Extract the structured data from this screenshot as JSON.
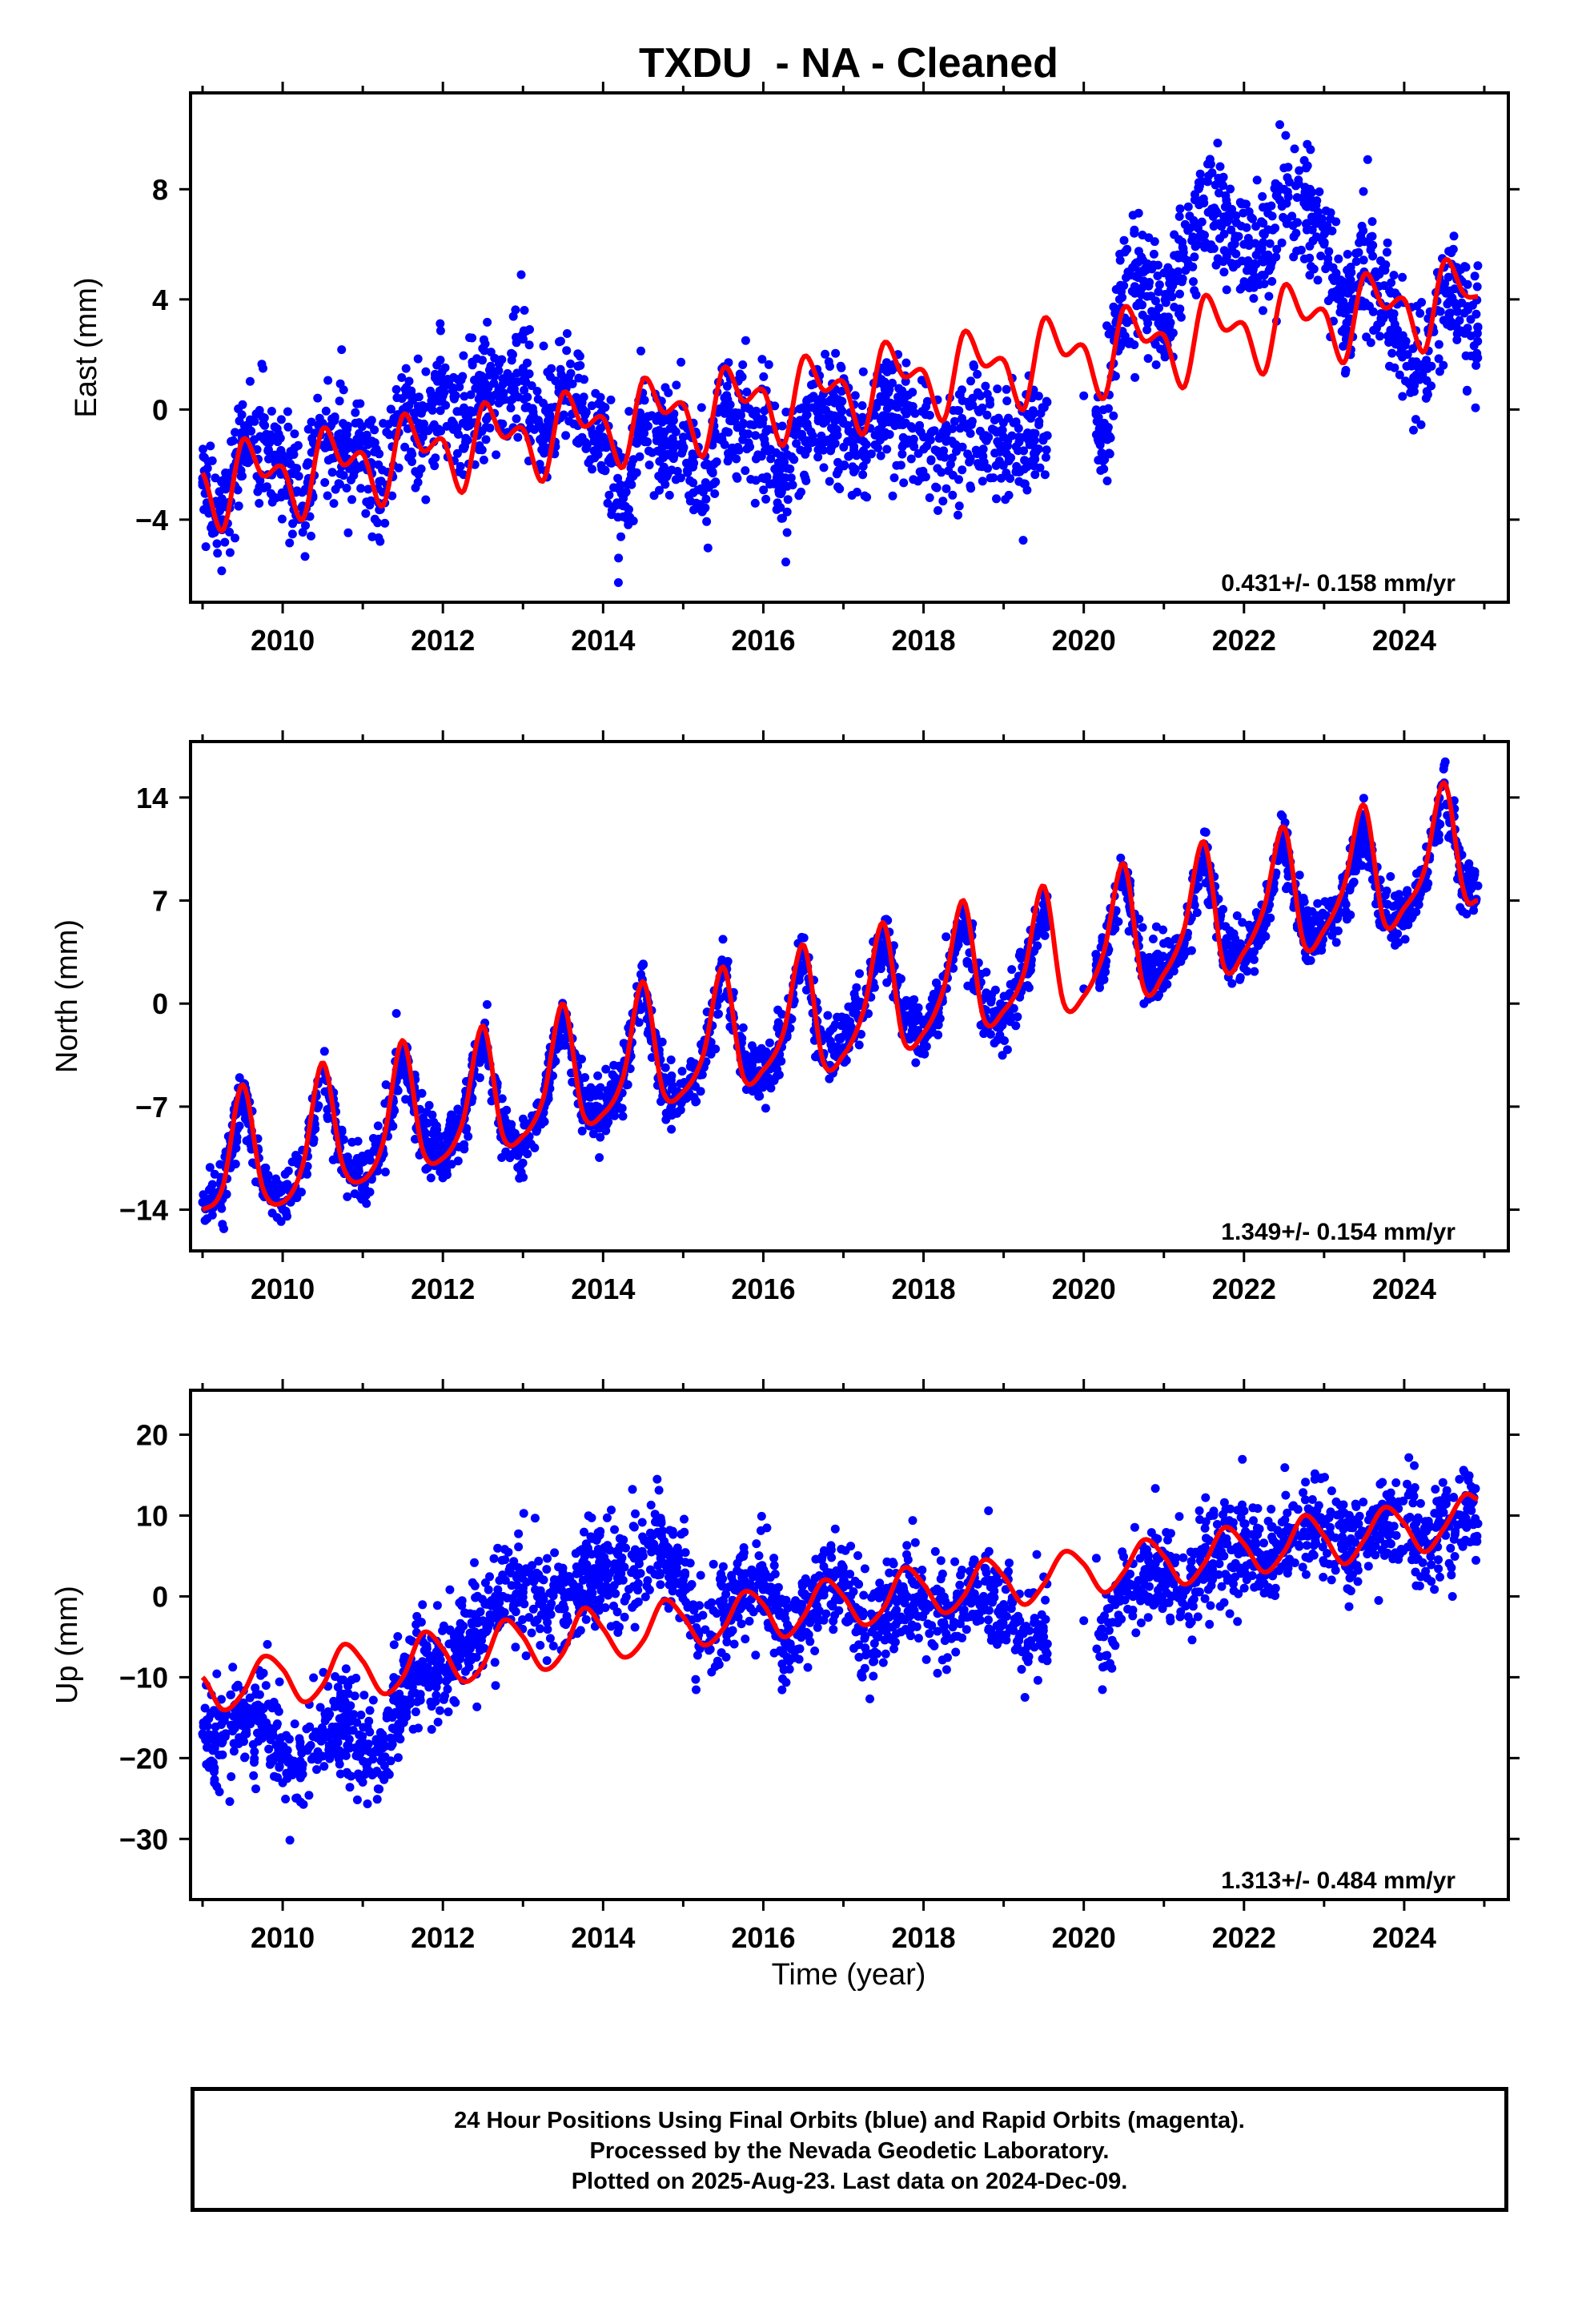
{
  "title": "TXDU  - NA - Cleaned",
  "xlabel": "Time (year)",
  "footer": {
    "line1": "24 Hour Positions Using Final Orbits (blue) and Rapid Orbits (magenta).",
    "line2": "Processed by the Nevada Geodetic Laboratory.",
    "line3": "Plotted on 2025-Aug-23. Last data on 2024-Dec-09."
  },
  "colors": {
    "data": "#0000ff",
    "model": "#ff0000",
    "axis": "#000000"
  },
  "chart_data": [
    {
      "type": "scatter",
      "panel": "east",
      "ylabel": "East (mm)",
      "rate_text": "0.431+/- 0.158 mm/yr",
      "xlim": [
        2008.85,
        2025.3
      ],
      "ylim": [
        -7,
        11.5
      ],
      "xticks": [
        2010,
        2012,
        2014,
        2016,
        2018,
        2020,
        2022,
        2024
      ],
      "yticks": [
        -4,
        0,
        4,
        8
      ],
      "ytick_labels": [
        "−4",
        "0",
        "4",
        "8"
      ],
      "series": [
        {
          "role": "data",
          "x": [
            2009.0,
            2009.25,
            2009.5,
            2009.75,
            2010.0,
            2010.25,
            2010.5,
            2010.75,
            2011.0,
            2011.25,
            2011.5,
            2011.75,
            2012.0,
            2012.25,
            2012.5,
            2012.75,
            2013.0,
            2013.25,
            2013.5,
            2013.75,
            2014.0,
            2014.25,
            2014.5,
            2014.75,
            2015.0,
            2015.25,
            2015.5,
            2015.75,
            2016.0,
            2016.25,
            2016.5,
            2016.75,
            2017.0,
            2017.25,
            2017.5,
            2017.75,
            2018.0,
            2018.25,
            2018.5,
            2018.75,
            2019.0,
            2019.25,
            2019.5,
            2020.0,
            2020.25,
            2020.5,
            2020.75,
            2021.0,
            2021.25,
            2021.5,
            2021.75,
            2022.0,
            2022.25,
            2022.5,
            2022.75,
            2023.0,
            2023.25,
            2023.5,
            2023.75,
            2024.0,
            2024.25,
            2024.5,
            2024.75,
            2024.92
          ],
          "y": [
            -2.5,
            -4.0,
            -1.5,
            -1.0,
            -2.0,
            -3.5,
            -0.5,
            -1.5,
            -1.5,
            -3.0,
            0.0,
            -1.0,
            0.5,
            -0.5,
            1.0,
            0.5,
            1.5,
            -1.0,
            1.0,
            0.0,
            -1.0,
            -3.5,
            -0.5,
            -1.0,
            -1.0,
            -3.0,
            0.0,
            -0.5,
            -1.0,
            -2.5,
            -0.5,
            -0.5,
            -0.5,
            -1.5,
            0.5,
            -0.5,
            -1.0,
            -1.5,
            -0.5,
            -1.0,
            -1.0,
            -1.5,
            -1.0,
            0.5,
            -1.0,
            4.5,
            5.0,
            3.0,
            5.5,
            7.5,
            7.0,
            6.0,
            5.5,
            8.0,
            7.5,
            6.0,
            3.5,
            5.0,
            4.5,
            2.0,
            1.5,
            4.5,
            3.5,
            3.0
          ]
        },
        {
          "role": "model",
          "x": [
            2009.0,
            2009.25,
            2009.5,
            2009.75,
            2010.0,
            2010.25,
            2010.5,
            2010.75,
            2011.0,
            2011.25,
            2011.5,
            2011.75,
            2012.0,
            2012.25,
            2012.5,
            2012.75,
            2013.0,
            2013.25,
            2013.5,
            2013.75,
            2014.0,
            2014.25,
            2014.5,
            2014.75,
            2015.0,
            2015.25,
            2015.5,
            2015.75,
            2016.0,
            2016.25,
            2016.5,
            2016.75,
            2017.0,
            2017.25,
            2017.5,
            2017.75,
            2018.0,
            2018.25,
            2018.5,
            2018.75,
            2019.0,
            2019.25,
            2019.5,
            2019.75,
            2020.0,
            2020.25,
            2020.5,
            2020.75,
            2021.0,
            2021.25,
            2021.5,
            2021.75,
            2022.0,
            2022.25,
            2022.5,
            2022.75,
            2023.0,
            2023.25,
            2023.5,
            2023.75,
            2024.0,
            2024.25,
            2024.5,
            2024.75,
            2024.92
          ],
          "y": [
            -2.3,
            -4.4,
            -1.1,
            -2.4,
            -2.1,
            -4.0,
            -0.7,
            -2.0,
            -1.6,
            -3.5,
            -0.2,
            -1.5,
            -1.1,
            -3.0,
            0.2,
            -1.0,
            -0.7,
            -2.6,
            0.6,
            -0.6,
            -0.3,
            -2.1,
            1.1,
            -0.1,
            0.2,
            -1.7,
            1.5,
            0.3,
            0.7,
            -1.3,
            1.9,
            0.7,
            1.0,
            -0.9,
            2.4,
            1.2,
            1.4,
            -0.4,
            2.8,
            1.6,
            1.8,
            0.0,
            3.3,
            2.0,
            2.3,
            0.4,
            3.7,
            2.5,
            2.7,
            0.8,
            4.1,
            2.9,
            3.1,
            1.3,
            4.5,
            3.3,
            3.6,
            1.7,
            4.9,
            3.7,
            4.0,
            2.1,
            5.4,
            4.2,
            4.1
          ]
        }
      ]
    },
    {
      "type": "scatter",
      "panel": "north",
      "ylabel": "North (mm)",
      "rate_text": "1.349+/- 0.154 mm/yr",
      "xlim": [
        2008.85,
        2025.3
      ],
      "ylim": [
        -16.8,
        17.8
      ],
      "xticks": [
        2010,
        2012,
        2014,
        2016,
        2018,
        2020,
        2022,
        2024
      ],
      "yticks": [
        -14,
        -7,
        0,
        7,
        14
      ],
      "ytick_labels": [
        "−14",
        "−7",
        "0",
        "7",
        "14"
      ],
      "series": [
        {
          "role": "data",
          "x": [
            2009.0,
            2009.25,
            2009.5,
            2009.75,
            2010.0,
            2010.25,
            2010.5,
            2010.75,
            2011.0,
            2011.25,
            2011.5,
            2011.75,
            2012.0,
            2012.25,
            2012.5,
            2012.75,
            2013.0,
            2013.25,
            2013.5,
            2013.75,
            2014.0,
            2014.25,
            2014.5,
            2014.75,
            2015.0,
            2015.25,
            2015.5,
            2015.75,
            2016.0,
            2016.25,
            2016.5,
            2016.75,
            2017.0,
            2017.25,
            2017.5,
            2017.75,
            2018.0,
            2018.25,
            2018.5,
            2018.75,
            2019.0,
            2019.25,
            2019.5,
            2020.0,
            2020.25,
            2020.5,
            2020.75,
            2021.0,
            2021.25,
            2021.5,
            2021.75,
            2022.0,
            2022.25,
            2022.5,
            2022.75,
            2023.0,
            2023.25,
            2023.5,
            2023.75,
            2024.0,
            2024.25,
            2024.5,
            2024.75,
            2024.92
          ],
          "y": [
            -13.5,
            -12.5,
            -6.0,
            -12.0,
            -13.5,
            -11.5,
            -4.5,
            -10.5,
            -12.0,
            -10.0,
            -3.0,
            -9.0,
            -10.0,
            -8.0,
            -2.0,
            -8.5,
            -10.0,
            -7.0,
            -0.5,
            -7.0,
            -7.5,
            -5.0,
            1.0,
            -5.5,
            -6.5,
            -4.0,
            2.5,
            -4.0,
            -5.0,
            -2.5,
            3.5,
            -3.5,
            -3.0,
            0.0,
            5.0,
            -1.0,
            -2.5,
            1.0,
            6.0,
            -0.5,
            -1.0,
            2.0,
            6.0,
            1.0,
            3.0,
            9.0,
            2.0,
            2.5,
            4.0,
            10.5,
            3.5,
            3.5,
            5.5,
            11.5,
            4.5,
            5.0,
            7.0,
            12.5,
            6.0,
            6.0,
            8.0,
            15.0,
            7.5,
            8.0
          ]
        },
        {
          "role": "model",
          "x": [
            2009.0,
            2009.25,
            2009.5,
            2009.75,
            2010.0,
            2010.25,
            2010.5,
            2010.75,
            2011.0,
            2011.25,
            2011.5,
            2011.75,
            2012.0,
            2012.25,
            2012.5,
            2012.75,
            2013.0,
            2013.25,
            2013.5,
            2013.75,
            2014.0,
            2014.25,
            2014.5,
            2014.75,
            2015.0,
            2015.25,
            2015.5,
            2015.75,
            2016.0,
            2016.25,
            2016.5,
            2016.75,
            2017.0,
            2017.25,
            2017.5,
            2017.75,
            2018.0,
            2018.25,
            2018.5,
            2018.75,
            2019.0,
            2019.25,
            2019.5,
            2019.75,
            2020.0,
            2020.25,
            2020.5,
            2020.75,
            2021.0,
            2021.25,
            2021.5,
            2021.75,
            2022.0,
            2022.25,
            2022.5,
            2022.75,
            2023.0,
            2023.25,
            2023.5,
            2023.75,
            2024.0,
            2024.25,
            2024.5,
            2024.75,
            2024.92
          ],
          "y": [
            -14.0,
            -12.5,
            -5.5,
            -12.5,
            -13.5,
            -11.0,
            -4.0,
            -11.0,
            -12.0,
            -9.5,
            -2.5,
            -10.0,
            -10.5,
            -8.0,
            -1.5,
            -9.0,
            -9.0,
            -6.5,
            0.0,
            -7.5,
            -7.5,
            -5.0,
            1.5,
            -6.0,
            -6.0,
            -3.5,
            2.5,
            -5.0,
            -4.5,
            -2.0,
            4.0,
            -4.0,
            -3.5,
            -0.5,
            5.5,
            -2.5,
            -2.0,
            1.0,
            7.0,
            -1.0,
            -0.5,
            2.0,
            8.0,
            0.0,
            0.5,
            3.5,
            9.5,
            1.0,
            2.0,
            5.0,
            11.0,
            2.5,
            3.5,
            6.5,
            12.0,
            4.0,
            5.0,
            8.0,
            13.5,
            5.5,
            6.5,
            9.0,
            15.0,
            7.5,
            7.0
          ]
        }
      ]
    },
    {
      "type": "scatter",
      "panel": "up",
      "ylabel": "Up (mm)",
      "rate_text": "1.313+/- 0.484 mm/yr",
      "xlim": [
        2008.85,
        2025.3
      ],
      "ylim": [
        -37.5,
        25.5
      ],
      "xticks": [
        2010,
        2012,
        2014,
        2016,
        2018,
        2020,
        2022,
        2024
      ],
      "yticks": [
        -30,
        -20,
        -10,
        0,
        10,
        20
      ],
      "ytick_labels": [
        "−30",
        "−20",
        "−10",
        "0",
        "10",
        "20"
      ],
      "series": [
        {
          "role": "data",
          "x": [
            2009.0,
            2009.25,
            2009.5,
            2009.75,
            2010.0,
            2010.25,
            2010.5,
            2010.75,
            2011.0,
            2011.25,
            2011.5,
            2011.75,
            2012.0,
            2012.25,
            2012.5,
            2012.75,
            2013.0,
            2013.25,
            2013.5,
            2013.75,
            2014.0,
            2014.25,
            2014.5,
            2014.75,
            2015.0,
            2015.25,
            2015.5,
            2015.75,
            2016.0,
            2016.25,
            2016.5,
            2016.75,
            2017.0,
            2017.25,
            2017.5,
            2017.75,
            2018.0,
            2018.25,
            2018.5,
            2018.75,
            2019.0,
            2019.25,
            2019.5,
            2020.0,
            2020.25,
            2020.5,
            2020.75,
            2021.0,
            2021.25,
            2021.5,
            2021.75,
            2022.0,
            2022.25,
            2022.5,
            2022.75,
            2023.0,
            2023.25,
            2023.5,
            2023.75,
            2024.0,
            2024.25,
            2024.5,
            2024.75,
            2024.92
          ],
          "y": [
            -17.0,
            -18.0,
            -16.0,
            -15.0,
            -20.0,
            -22.0,
            -17.0,
            -15.0,
            -18.0,
            -20.0,
            -13.0,
            -9.0,
            -9.0,
            -6.0,
            -3.0,
            0.0,
            1.0,
            0.0,
            -1.0,
            2.0,
            3.0,
            2.0,
            5.0,
            6.0,
            2.0,
            -6.0,
            -2.0,
            1.0,
            2.0,
            -5.0,
            -3.0,
            2.0,
            2.0,
            -4.0,
            -3.0,
            1.0,
            0.0,
            -4.0,
            -2.0,
            0.0,
            -1.0,
            -4.0,
            -5.0,
            -3.0,
            -5.0,
            1.0,
            2.0,
            3.0,
            1.0,
            4.0,
            5.0,
            6.0,
            4.0,
            7.0,
            8.0,
            9.0,
            6.0,
            8.0,
            9.0,
            9.0,
            7.0,
            9.0,
            10.0,
            9.0
          ]
        },
        {
          "role": "model",
          "x": [
            2009.0,
            2009.25,
            2009.5,
            2009.75,
            2010.0,
            2010.25,
            2010.5,
            2010.75,
            2011.0,
            2011.25,
            2011.5,
            2011.75,
            2012.0,
            2012.25,
            2012.5,
            2012.75,
            2013.0,
            2013.25,
            2013.5,
            2013.75,
            2014.0,
            2014.25,
            2014.5,
            2014.75,
            2015.0,
            2015.25,
            2015.5,
            2015.75,
            2016.0,
            2016.25,
            2016.5,
            2016.75,
            2017.0,
            2017.25,
            2017.5,
            2017.75,
            2018.0,
            2018.25,
            2018.5,
            2018.75,
            2019.0,
            2019.25,
            2019.5,
            2019.75,
            2020.0,
            2020.25,
            2020.5,
            2020.75,
            2021.0,
            2021.25,
            2021.5,
            2021.75,
            2022.0,
            2022.25,
            2022.5,
            2022.75,
            2023.0,
            2023.25,
            2023.5,
            2023.75,
            2024.0,
            2024.25,
            2024.5,
            2024.75,
            2024.92
          ],
          "y": [
            -10.0,
            -14.0,
            -12.0,
            -7.5,
            -9.0,
            -13.0,
            -11.0,
            -6.0,
            -8.0,
            -12.0,
            -10.0,
            -4.5,
            -6.5,
            -10.5,
            -8.5,
            -3.0,
            -5.0,
            -9.0,
            -7.0,
            -1.5,
            -4.0,
            -7.5,
            -5.5,
            -0.5,
            -2.5,
            -6.0,
            -4.0,
            0.5,
            -1.0,
            -5.0,
            -2.5,
            2.0,
            0.0,
            -3.5,
            -1.5,
            3.5,
            1.5,
            -2.0,
            0.0,
            4.5,
            2.5,
            -1.0,
            1.5,
            5.5,
            4.0,
            0.5,
            3.0,
            7.0,
            5.0,
            1.5,
            4.0,
            8.5,
            6.5,
            3.0,
            5.5,
            10.0,
            7.5,
            4.0,
            7.0,
            11.0,
            9.0,
            5.5,
            8.5,
            12.5,
            12.0
          ]
        }
      ]
    }
  ]
}
